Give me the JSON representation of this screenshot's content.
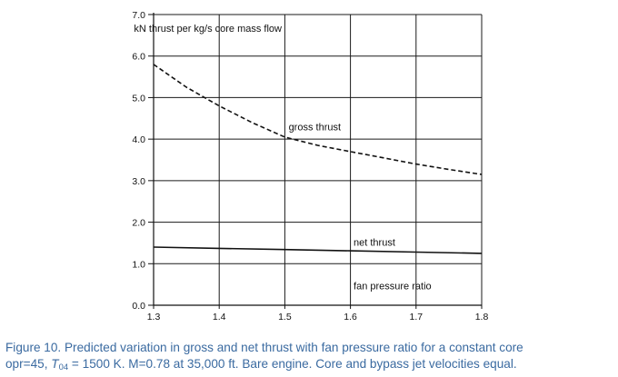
{
  "chart_data": {
    "type": "line",
    "ylabel": "kN thrust per kg/s core mass flow",
    "xlabel": "fan pressure ratio",
    "xlim": [
      1.3,
      1.8
    ],
    "ylim": [
      0,
      7
    ],
    "x_ticks": [
      1.3,
      1.4,
      1.5,
      1.6,
      1.7,
      1.8
    ],
    "x_tick_labels": [
      "1.3",
      "1.4",
      "1.5",
      "1.6",
      "1.7",
      "1.8"
    ],
    "y_ticks": [
      0,
      1,
      2,
      3,
      4,
      5,
      6,
      7
    ],
    "y_tick_labels": [
      "0.0",
      "1.0",
      "2.0",
      "3.0",
      "4.0",
      "5.0",
      "6.0",
      "7.0"
    ],
    "grid": true,
    "series": [
      {
        "name": "gross thrust",
        "style": "dashed",
        "color": "#111111",
        "x": [
          1.3,
          1.35,
          1.4,
          1.45,
          1.5,
          1.55,
          1.6,
          1.65,
          1.7,
          1.75,
          1.8
        ],
        "y": [
          5.8,
          5.25,
          4.8,
          4.4,
          4.05,
          3.85,
          3.7,
          3.55,
          3.4,
          3.27,
          3.15
        ]
      },
      {
        "name": "net thrust",
        "style": "solid",
        "color": "#111111",
        "x": [
          1.3,
          1.4,
          1.5,
          1.6,
          1.7,
          1.8
        ],
        "y": [
          1.4,
          1.37,
          1.34,
          1.31,
          1.28,
          1.25
        ]
      }
    ],
    "annotations": [
      {
        "text": "gross thrust",
        "x": 1.503,
        "y": 4.3
      },
      {
        "text": "net thrust",
        "x": 1.602,
        "y": 1.52
      },
      {
        "text": "fan pressure ratio",
        "x": 1.602,
        "y": 0.47
      }
    ]
  },
  "caption": {
    "line1": "Figure 10. Predicted variation in gross and net thrust with fan pressure ratio for a constant core",
    "line2_pre": "opr=45, ",
    "T": "T",
    "T_sub": "04",
    "line2_post": " = 1500 K. M=0.78 at 35,000 ft. Bare engine. Core and bypass jet velocities equal."
  }
}
